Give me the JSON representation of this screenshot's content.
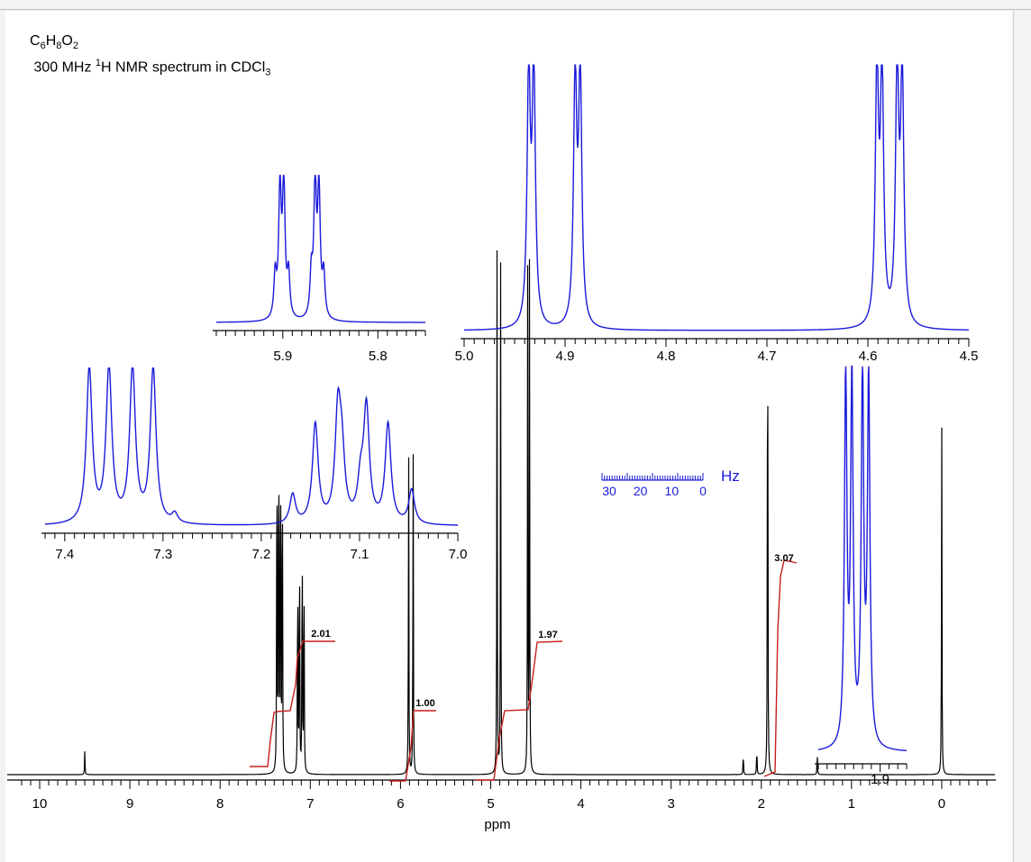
{
  "chart_data": {
    "type": "line",
    "title": {
      "formula": {
        "C": "C",
        "C_n": "6",
        "H": "H",
        "H_n": "8",
        "O": "O",
        "O_n": "2"
      },
      "line2_a": "300 MHz ",
      "line2_sup": "1",
      "line2_b": "H NMR spectrum in CDCl",
      "line2_sub": "3"
    },
    "xlabel": "ppm",
    "xlim": [
      10.3,
      -0.6
    ],
    "x_direction": "reversed",
    "main_ticks": [
      "10",
      "9",
      "8",
      "7",
      "6",
      "5",
      "4",
      "3",
      "2",
      "1",
      "0"
    ],
    "grid": false,
    "peaks": [
      {
        "ppm": 9.5,
        "height": 0.04
      },
      {
        "ppm": 7.37,
        "height": 0.69
      },
      {
        "ppm": 7.35,
        "height": 0.7
      },
      {
        "ppm": 7.33,
        "height": 0.67
      },
      {
        "ppm": 7.31,
        "height": 0.64
      },
      {
        "ppm": 7.14,
        "height": 0.4
      },
      {
        "ppm": 7.12,
        "height": 0.45
      },
      {
        "ppm": 7.09,
        "height": 0.47
      },
      {
        "ppm": 7.07,
        "height": 0.4
      },
      {
        "ppm": 5.91,
        "height": 0.57
      },
      {
        "ppm": 5.86,
        "height": 0.57
      },
      {
        "ppm": 4.93,
        "height": 0.84
      },
      {
        "ppm": 4.89,
        "height": 0.82
      },
      {
        "ppm": 4.59,
        "height": 0.81
      },
      {
        "ppm": 4.57,
        "height": 0.82
      },
      {
        "ppm": 2.2,
        "height": 0.04
      },
      {
        "ppm": 2.05,
        "height": 0.05
      },
      {
        "ppm": 1.93,
        "height": 1.0
      },
      {
        "ppm": 1.38,
        "height": 0.04
      },
      {
        "ppm": 0.0,
        "height": 0.58
      }
    ],
    "integrals": [
      {
        "label": "2.01",
        "from": 7.55,
        "to": 6.7,
        "value": 2.01
      },
      {
        "label": "1.00",
        "from": 6.05,
        "to": 5.65,
        "value": 1.0
      },
      {
        "label": "1.97",
        "from": 5.1,
        "to": 4.4,
        "value": 1.97
      },
      {
        "label": "3.07",
        "from": 2.05,
        "to": 1.75,
        "value": 3.07
      }
    ],
    "insets": [
      {
        "name": "inset-7",
        "xlim": [
          7.42,
          7.0
        ],
        "ticks": [
          "7.4",
          "7.3",
          "7.2",
          "7.1",
          "7.0"
        ],
        "peaks": [
          [
            7.375,
            1.0
          ],
          [
            7.355,
            1.0
          ],
          [
            7.331,
            1.0
          ],
          [
            7.31,
            1.0
          ],
          [
            7.288,
            0.06
          ],
          [
            7.168,
            0.19
          ],
          [
            7.145,
            0.64
          ],
          [
            7.122,
            0.68
          ],
          [
            7.118,
            0.38
          ],
          [
            7.099,
            0.23
          ],
          [
            7.093,
            0.73
          ],
          [
            7.071,
            0.64
          ],
          [
            7.047,
            0.22
          ]
        ]
      },
      {
        "name": "inset-59",
        "xlim": [
          5.97,
          5.75
        ],
        "ticks": [
          "5.9",
          "5.8"
        ],
        "peaks": [
          [
            5.908,
            0.3
          ],
          [
            5.903,
            0.9
          ],
          [
            5.899,
            0.93
          ],
          [
            5.894,
            0.3
          ],
          [
            5.87,
            0.3
          ],
          [
            5.866,
            0.93
          ],
          [
            5.862,
            0.9
          ],
          [
            5.857,
            0.3
          ]
        ]
      },
      {
        "name": "inset-48",
        "xlim": [
          5.0,
          4.5
        ],
        "ticks": [
          "5.0",
          "4.9",
          "4.8",
          "4.7",
          "4.6",
          "4.5"
        ],
        "peaks": [
          [
            4.936,
            0.97
          ],
          [
            4.931,
            0.98
          ],
          [
            4.89,
            0.95
          ],
          [
            4.885,
            0.96
          ],
          [
            4.591,
            0.98
          ],
          [
            4.586,
            0.97
          ],
          [
            4.571,
            0.98
          ],
          [
            4.566,
            0.96
          ]
        ]
      },
      {
        "name": "inset-19",
        "xlim": [
          1.97,
          1.87
        ],
        "ticks": [
          "1.9"
        ],
        "peaks": [
          [
            1.939,
            0.98
          ],
          [
            1.932,
            0.97
          ],
          [
            1.92,
            0.98
          ],
          [
            1.913,
            0.97
          ]
        ]
      }
    ],
    "hz_scale": {
      "ticks": [
        "30",
        "20",
        "10",
        "0"
      ],
      "unit": "Hz"
    },
    "colors": {
      "spectrum": "#000000",
      "inset": "#1a1adb",
      "integral": "#c81e1e"
    }
  }
}
